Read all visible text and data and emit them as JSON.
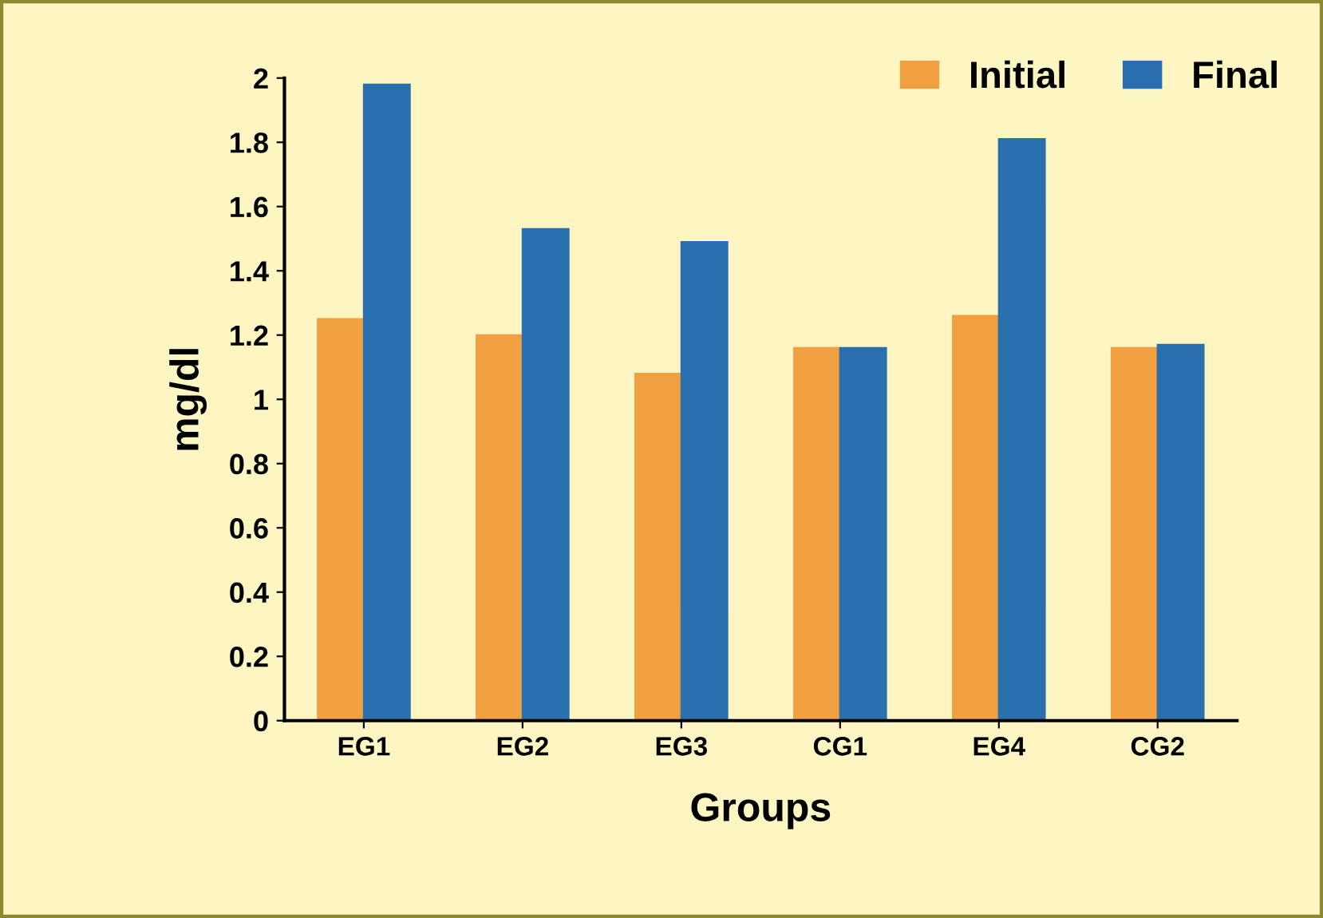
{
  "chart_data": {
    "type": "bar",
    "xlabel": "Groups",
    "ylabel": "mg/dl",
    "categories": [
      "EG1",
      "EG2",
      "EG3",
      "CG1",
      "EG4",
      "CG2"
    ],
    "series": [
      {
        "name": "Initial",
        "color": "#f0a040",
        "values": [
          1.25,
          1.2,
          1.08,
          1.16,
          1.26,
          1.16
        ]
      },
      {
        "name": "Final",
        "color": "#2a6fae",
        "values": [
          1.98,
          1.53,
          1.49,
          1.16,
          1.81,
          1.17
        ]
      }
    ],
    "ylim": [
      0,
      2
    ],
    "yticks": [
      0,
      0.2,
      0.4,
      0.6,
      0.8,
      1,
      1.2,
      1.4,
      1.6,
      1.8,
      2
    ],
    "grid": false,
    "legend": "top right"
  }
}
